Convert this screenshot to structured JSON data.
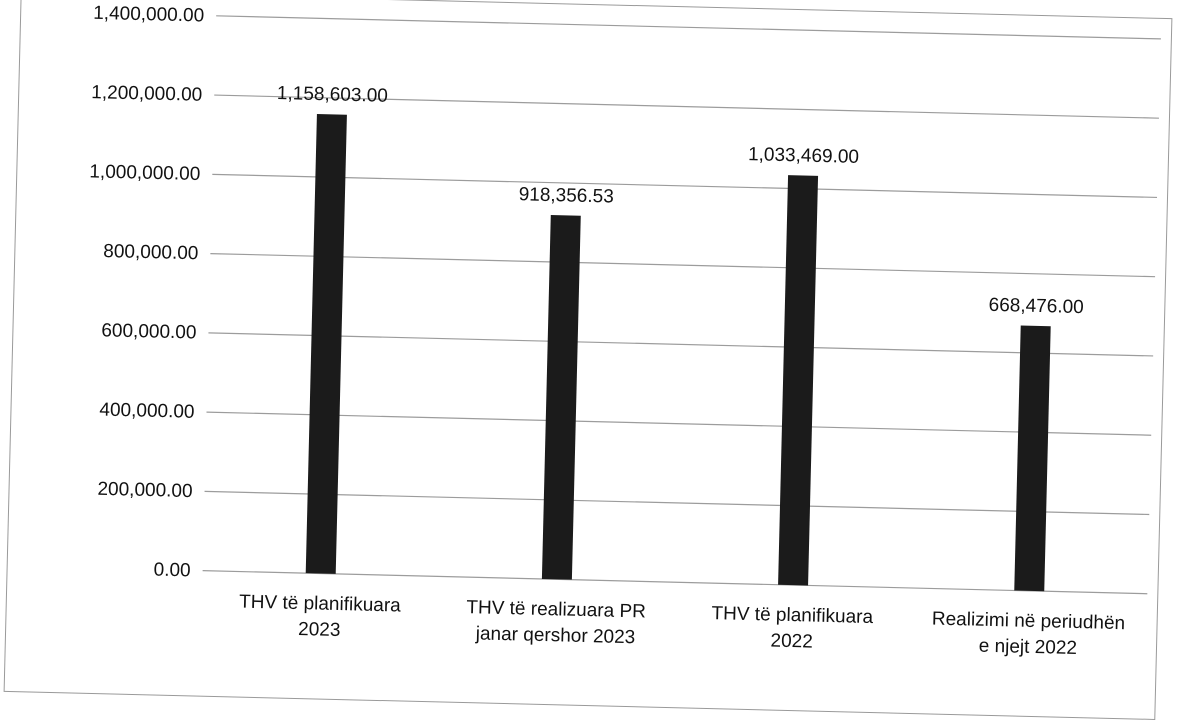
{
  "chart_data": {
    "type": "bar",
    "title": "",
    "xlabel": "",
    "ylabel": "",
    "categories": [
      [
        "THV të planifikuara",
        "2023"
      ],
      [
        "THV të realizuara PR",
        "janar qershor 2023"
      ],
      [
        "THV të planifikuara",
        "2022"
      ],
      [
        "Realizimi në periudhën",
        "e njejt 2022"
      ]
    ],
    "values": [
      1158603.0,
      918356.53,
      1033469.0,
      668476.0
    ],
    "data_labels": [
      "1,158,603.00",
      "918,356.53",
      "1,033,469.00",
      "668,476.00"
    ],
    "y_ticks": [
      0,
      200000,
      400000,
      600000,
      800000,
      1000000,
      1200000,
      1400000
    ],
    "y_tick_labels": [
      "0.00",
      "200,000.00",
      "400,000.00",
      "600,000.00",
      "800,000.00",
      "1,000,000.00",
      "1,200,000.00",
      "1,400,000.00"
    ],
    "ylim": [
      0,
      1400000
    ],
    "grid": true,
    "legend": "none",
    "colors": {
      "bar": "#1b1b1b",
      "grid": "#9c9c9c",
      "text": "#111111"
    }
  }
}
